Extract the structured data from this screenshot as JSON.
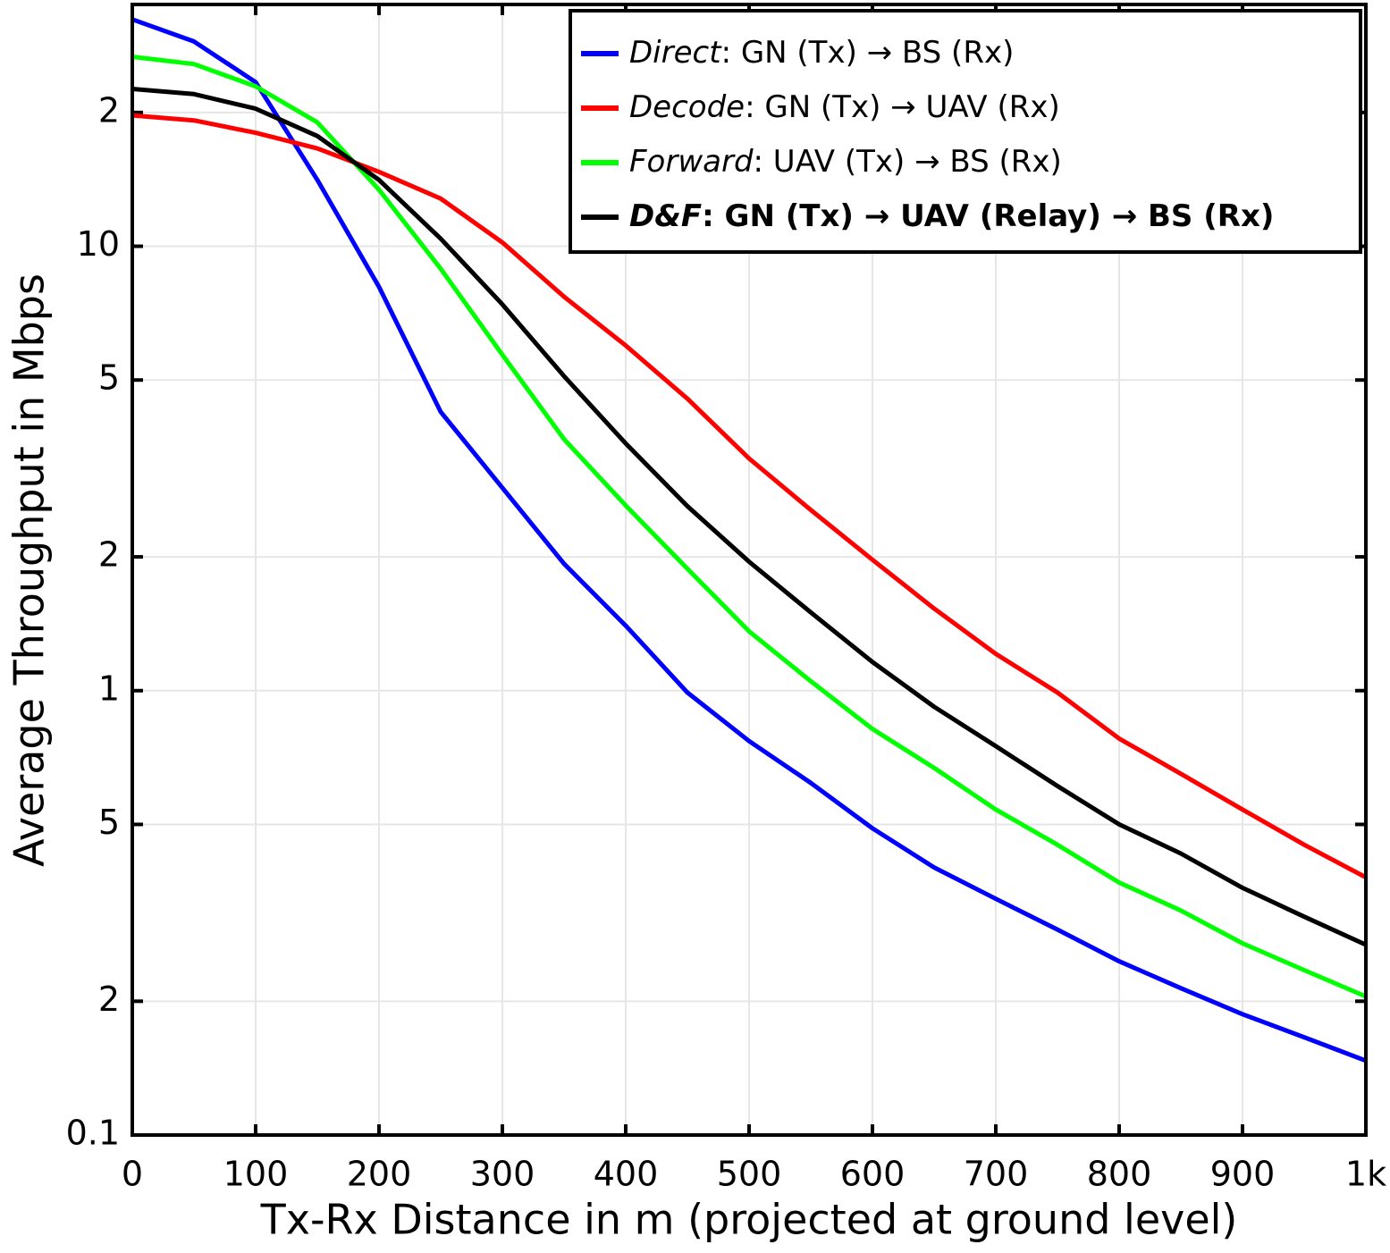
{
  "chart_data": {
    "type": "line",
    "xlabel": "Tx-Rx Distance in m (projected at ground level)",
    "ylabel": "Average Throughput in Mbps",
    "log_y": true,
    "grid": true,
    "legend_position": "upper right",
    "xlim": [
      0,
      1000
    ],
    "xticks": [
      0,
      100,
      200,
      300,
      400,
      500,
      600,
      700,
      800,
      900,
      {
        "value": 1000,
        "label": "1k"
      }
    ],
    "ylim": [
      0.1,
      35
    ],
    "yticks": [
      0.1,
      {
        "value": 0.2,
        "label": "2"
      },
      {
        "value": 0.5,
        "label": "5"
      },
      1,
      {
        "value": 2,
        "label": "2"
      },
      {
        "value": 5,
        "label": "5"
      },
      10,
      {
        "value": 20,
        "label": "2"
      }
    ],
    "x": [
      0,
      50,
      100,
      150,
      200,
      250,
      300,
      350,
      400,
      450,
      500,
      550,
      600,
      650,
      700,
      750,
      800,
      850,
      900,
      950,
      1000
    ],
    "series": [
      {
        "name": "Direct: GN (Tx) → BS (Rx)",
        "color": "#0000ff",
        "values": [
          32.4,
          28.9,
          23.4,
          14.1,
          8.1,
          4.24,
          2.86,
          1.93,
          1.4,
          0.99,
          0.77,
          0.62,
          0.49,
          0.4,
          0.34,
          0.29,
          0.246,
          0.214,
          0.187,
          0.166,
          0.147
        ]
      },
      {
        "name": "Decode: GN (Tx) → UAV (Rx)",
        "color": "#ff0000",
        "values": [
          19.7,
          19.2,
          18.0,
          16.6,
          14.7,
          12.8,
          10.2,
          7.7,
          5.98,
          4.54,
          3.33,
          2.55,
          1.97,
          1.53,
          1.21,
          0.99,
          0.78,
          0.65,
          0.54,
          0.45,
          0.38
        ]
      },
      {
        "name": "Forward: UAV (Tx) → BS (Rx)",
        "color": "#00ff00",
        "values": [
          26.7,
          25.7,
          22.9,
          19.0,
          13.4,
          8.9,
          5.7,
          3.68,
          2.61,
          1.88,
          1.36,
          1.05,
          0.82,
          0.67,
          0.54,
          0.45,
          0.37,
          0.32,
          0.27,
          0.235,
          0.205
        ]
      },
      {
        "name": "D&F: GN (Tx) → UAV (Relay) → BS (Rx)",
        "color": "#000000",
        "values": [
          22.6,
          22.0,
          20.4,
          17.7,
          14.1,
          10.4,
          7.4,
          5.1,
          3.6,
          2.6,
          1.95,
          1.5,
          1.16,
          0.92,
          0.75,
          0.61,
          0.5,
          0.43,
          0.36,
          0.31,
          0.268
        ]
      }
    ]
  }
}
